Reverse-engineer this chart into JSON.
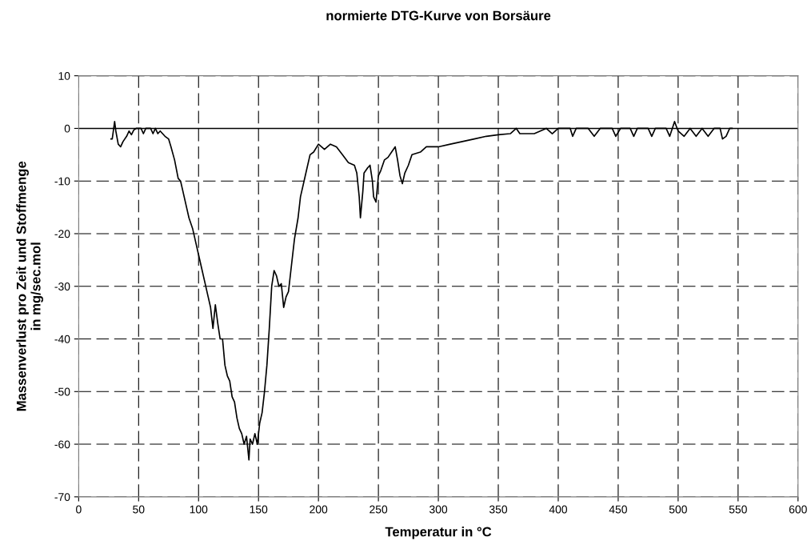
{
  "chart_data": {
    "type": "line",
    "title": "normierte DTG-Kurve von Borsäure",
    "xlabel": "Temperatur in °C",
    "ylabel": "Massenverlust pro Zeit und Stoffmenge\nin mg/sec.mol",
    "xlim": [
      0,
      600
    ],
    "xticks": [
      0,
      50,
      100,
      150,
      200,
      250,
      300,
      350,
      400,
      450,
      500,
      550,
      600
    ],
    "ylim": [
      -70,
      10
    ],
    "yticks": [
      -70,
      -60,
      -50,
      -40,
      -30,
      -20,
      -10,
      0,
      10
    ],
    "grid": true,
    "marker": "none",
    "line_style": "solid",
    "ref_lines": [
      {
        "axis": "y",
        "value": 0,
        "color": "#000000",
        "line_style": "solid"
      }
    ],
    "series": [
      {
        "color": "#000000",
        "x": [
          27,
          28,
          30,
          31,
          33,
          35,
          37,
          40,
          42,
          44,
          46,
          48,
          52,
          54,
          56,
          60,
          62,
          64,
          66,
          68,
          70,
          72,
          75,
          77,
          80,
          83,
          85,
          87,
          90,
          92,
          95,
          98,
          100,
          103,
          105,
          108,
          110,
          112,
          114,
          116,
          118,
          120,
          122,
          124,
          126,
          128,
          130,
          132,
          134,
          136,
          138,
          140,
          142,
          143,
          145,
          147,
          149,
          151,
          153,
          155,
          157,
          159,
          161,
          163,
          165,
          167,
          169,
          171,
          173,
          175,
          177,
          180,
          183,
          185,
          188,
          190,
          193,
          196,
          200,
          205,
          210,
          215,
          220,
          225,
          230,
          232,
          234,
          235,
          237,
          238,
          241,
          243,
          245,
          246,
          248,
          250,
          252,
          255,
          258,
          261,
          264,
          266,
          268,
          270,
          272,
          275,
          278,
          285,
          290,
          300,
          310,
          320,
          330,
          340,
          350,
          360,
          365,
          368,
          380,
          390,
          395,
          400,
          410,
          412,
          415,
          425,
          430,
          435,
          445,
          448,
          452,
          460,
          463,
          466,
          475,
          478,
          481,
          490,
          493,
          497,
          500,
          505,
          510,
          515,
          520,
          525,
          530,
          535,
          537,
          540,
          543,
          545
        ],
        "values": [
          -2,
          -2,
          1.3,
          -0.5,
          -3,
          -3.5,
          -2.5,
          -1.5,
          -0.5,
          -1.2,
          -0.3,
          0,
          0,
          -1,
          0,
          0,
          -1,
          0,
          -1,
          -0.5,
          -1,
          -1.5,
          -2,
          -3.5,
          -6,
          -9.5,
          -10,
          -12,
          -15,
          -17,
          -19,
          -22,
          -24,
          -27,
          -29,
          -32,
          -34,
          -38,
          -33.5,
          -37,
          -40,
          -40,
          -45,
          -47,
          -48,
          -51,
          -52,
          -55,
          -57,
          -58,
          -60,
          -58.5,
          -63,
          -59,
          -60,
          -58,
          -60,
          -56,
          -54,
          -50,
          -45,
          -38,
          -30,
          -27,
          -28,
          -30,
          -29.5,
          -34,
          -32,
          -31,
          -27,
          -21,
          -17,
          -13,
          -10,
          -8,
          -5,
          -4.5,
          -3,
          -4,
          -3,
          -3.5,
          -5,
          -6.5,
          -7,
          -8.5,
          -13,
          -17,
          -12,
          -8.5,
          -7.5,
          -7,
          -10,
          -13,
          -14,
          -9,
          -8,
          -6,
          -5.5,
          -4.5,
          -3.5,
          -6,
          -9,
          -10.5,
          -8.5,
          -7,
          -5,
          -4.5,
          -3.5,
          -3.5,
          -3,
          -2.5,
          -2,
          -1.5,
          -1.2,
          -1,
          0,
          -1,
          -1,
          0,
          -1,
          0,
          0,
          -1.5,
          0,
          0,
          -1.5,
          0,
          0,
          -1.5,
          0,
          0,
          -1.5,
          0,
          0,
          -1.5,
          0,
          0,
          -1.5,
          1.3,
          -0.5,
          -1.5,
          0,
          -1.5,
          0,
          -1.5,
          0,
          0,
          -2,
          -1.5,
          0,
          0
        ]
      }
    ]
  }
}
